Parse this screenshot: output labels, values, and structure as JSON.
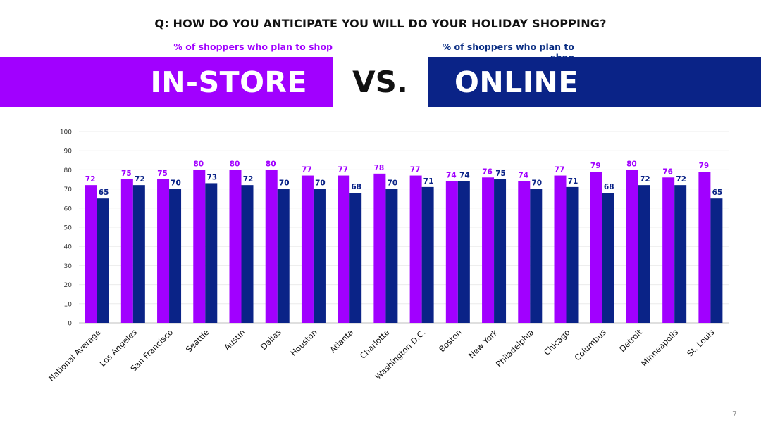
{
  "question": "Q: HOW DO YOU ANTICIPATE YOU WILL DO YOUR HOLIDAY SHOPPING?",
  "left_panel": {
    "subtitle": "% of shoppers who plan to shop",
    "title": "IN-STORE"
  },
  "vs_text": "VS.",
  "right_panel": {
    "subtitle": "% of shoppers who plan to shop",
    "title": "ONLINE"
  },
  "page_number": "7",
  "colors": {
    "in_store": "#a100ff",
    "online": "#0a2387",
    "band_online": "#0a2387"
  },
  "chart_data": {
    "type": "bar",
    "title": "",
    "xlabel": "",
    "ylabel": "",
    "ylim": [
      0,
      100
    ],
    "yticks": [
      0,
      10,
      20,
      30,
      40,
      50,
      60,
      70,
      80,
      90,
      100
    ],
    "grid": true,
    "categories": [
      "National Average",
      "Los Angeles",
      "San Francisco",
      "Seattle",
      "Austin",
      "Dallas",
      "Houston",
      "Atlanta",
      "Charlotte",
      "Washington D.C.",
      "Boston",
      "New York",
      "Philadelphia",
      "Chicago",
      "Columbus",
      "Detroit",
      "Minneapolis",
      "St. Louis"
    ],
    "series": [
      {
        "key": "in_store",
        "color": "#a100ff",
        "values": [
          72,
          75,
          75,
          80,
          80,
          80,
          77,
          77,
          78,
          77,
          74,
          76,
          74,
          77,
          79,
          80,
          76,
          79
        ]
      },
      {
        "key": "online",
        "color": "#0a2387",
        "values": [
          65,
          72,
          70,
          73,
          72,
          70,
          70,
          68,
          70,
          71,
          74,
          75,
          70,
          71,
          68,
          72,
          72,
          65
        ]
      }
    ]
  }
}
